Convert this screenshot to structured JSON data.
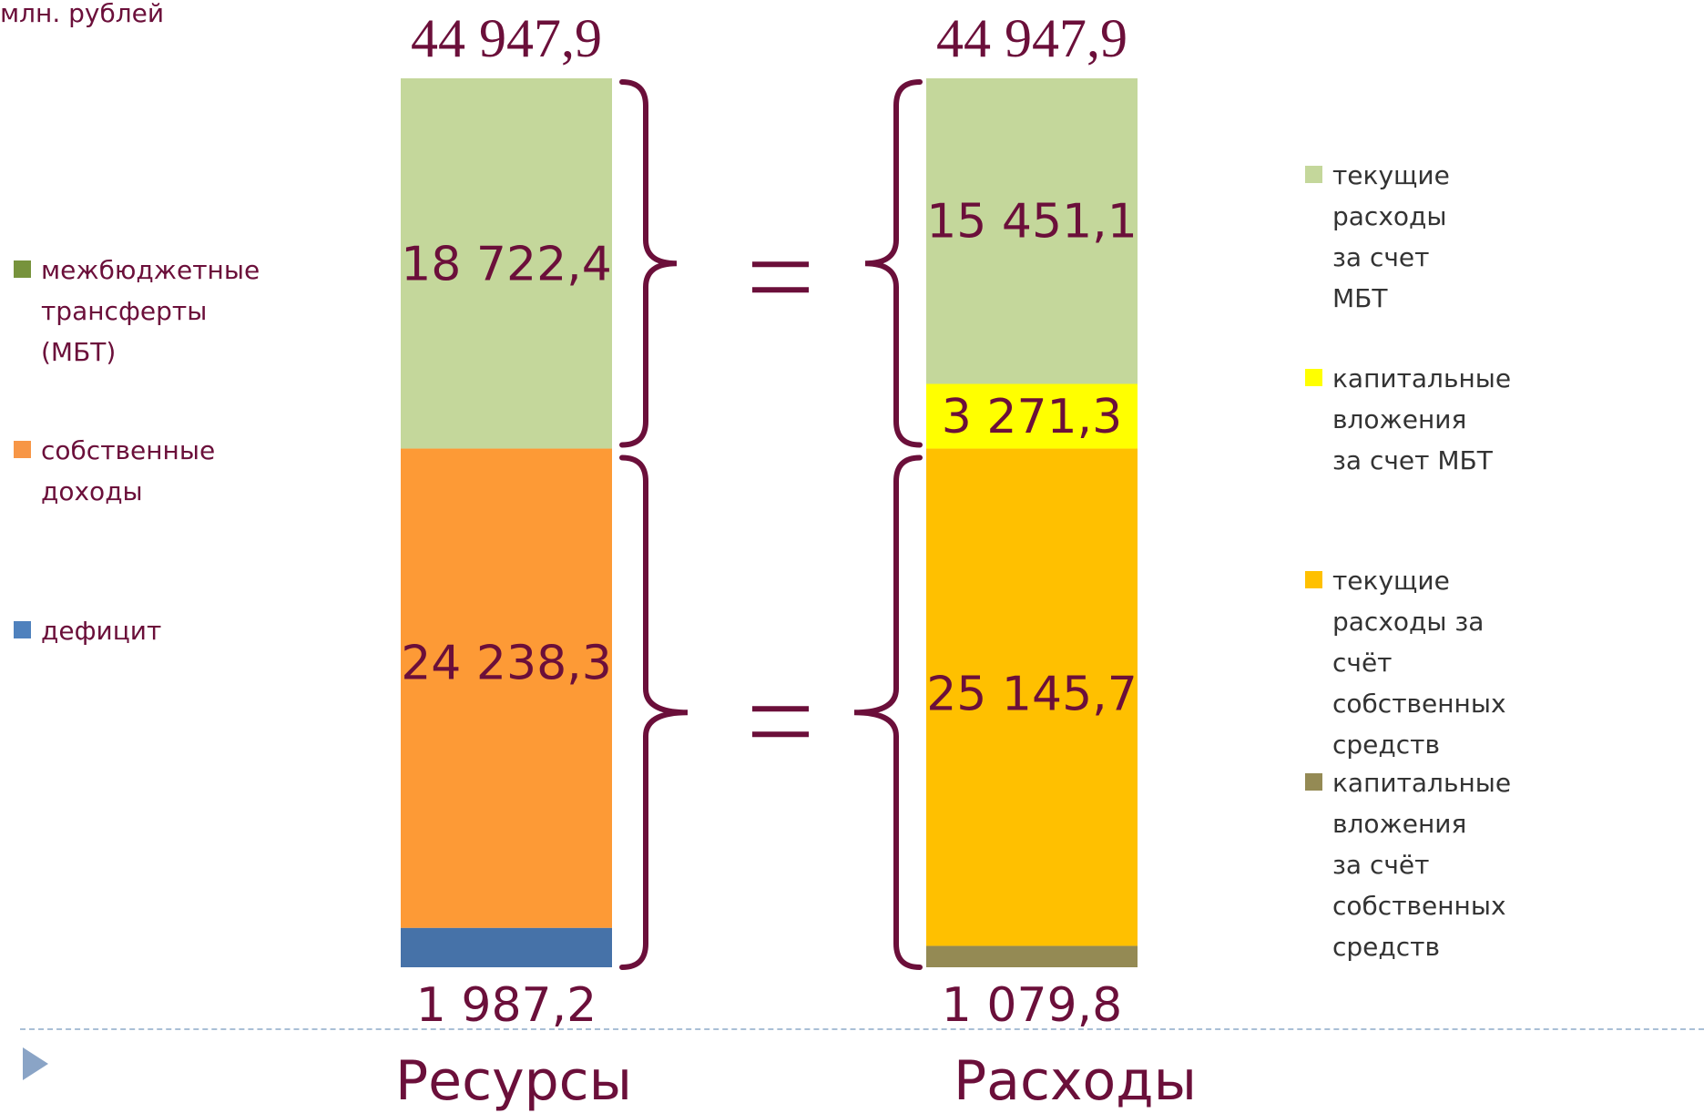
{
  "unit": "млн. рублей",
  "chart_data": {
    "type": "bar",
    "stacked": true,
    "categories": [
      "Ресурсы",
      "Расходы"
    ],
    "totals": [
      "44 947,9",
      "44 947,9"
    ],
    "total_values": [
      44947.9,
      44947.9
    ],
    "series": [
      {
        "name": "межбюджетные трансферты (МБТ)",
        "category": "Ресурсы",
        "value": 18722.4,
        "label": "18 722,4",
        "color": "#c4d79b"
      },
      {
        "name": "собственные доходы",
        "category": "Ресурсы",
        "value": 24238.3,
        "label": "24 238,3",
        "color": "#fd9a36"
      },
      {
        "name": "дефицит",
        "category": "Ресурсы",
        "value": 1987.2,
        "label": "1 987,2",
        "color": "#4672a8"
      },
      {
        "name": "текущие расходы за счет МБТ",
        "category": "Расходы",
        "value": 15451.1,
        "label": "15 451,1",
        "color": "#c4d79b"
      },
      {
        "name": "капитальные вложения за счет МБТ",
        "category": "Расходы",
        "value": 3271.3,
        "label": "3 271,3",
        "color": "#ffff00"
      },
      {
        "name": "текущие расходы за счёт собственных средств",
        "category": "Расходы",
        "value": 25145.7,
        "label": "25 145,7",
        "color": "#ffc000"
      },
      {
        "name": "капитальные вложения за счёт собственных средств",
        "category": "Расходы",
        "value": 1079.8,
        "label": "1 079,8",
        "color": "#948a54"
      }
    ],
    "equals_sign": "="
  },
  "legend_left": [
    {
      "label": "межбюджетные\n трансферты\n(МБТ)",
      "color": "#77933c"
    },
    {
      "label": "собственные\n доходы",
      "color": "#f79646"
    },
    {
      "label": "дефицит",
      "color": "#4f81bd"
    }
  ],
  "legend_right": [
    {
      "label": "текущие расходы за счет\nМБТ",
      "color": "#c4d79b"
    },
    {
      "label": "капитальные вложения\nза счет МБТ",
      "color": "#ffff00"
    },
    {
      "label": "текущие расходы за\nсчёт собственных средств",
      "color": "#ffc000"
    },
    {
      "label": "капитальные вложения\nза счёт собственных\nсредств",
      "color": "#948a54"
    }
  ],
  "colors": {
    "text": "#6b0f3a",
    "brace": "#6b0f3a",
    "divider": "#a9bfd6",
    "arrow": "#8aa4c6"
  }
}
